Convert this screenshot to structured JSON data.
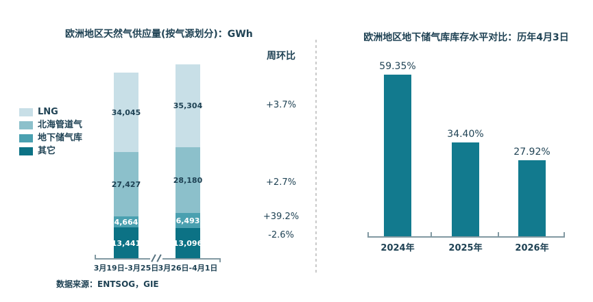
{
  "theme": {
    "background": "#ffffff",
    "text_color": "#1f4254",
    "axis_color": "#8198a1",
    "divider_color": "#c9c9c9"
  },
  "source_note": "数据来源：ENTSOG，GIE",
  "chart_data": [
    {
      "type": "bar",
      "subtype": "stacked",
      "title": "欧洲地区天然气供应量(按气源划分)：GWh",
      "unit": "GWh",
      "legend_position": "left",
      "categories": [
        "3月19日-3月25日",
        "3月26日-4月1日"
      ],
      "series": [
        {
          "name": "LNG",
          "color": "#c8dfe7",
          "values": [
            34045,
            35304
          ],
          "labels": [
            "34,045",
            "35,304"
          ],
          "label_color": "#1f4254"
        },
        {
          "name": "北海管道气",
          "color": "#8cc0cb",
          "values": [
            27427,
            28180
          ],
          "labels": [
            "27,427",
            "28,180"
          ],
          "label_color": "#1f4254"
        },
        {
          "name": "地下储气库",
          "color": "#4aa0b0",
          "values": [
            4664,
            6493
          ],
          "labels": [
            "4,664",
            "6,493"
          ],
          "label_color": "#ffffff"
        },
        {
          "name": "其它",
          "color": "#0c7285",
          "values": [
            13441,
            13096
          ],
          "labels": [
            "13,441",
            "13,096"
          ],
          "label_color": "#ffffff"
        }
      ],
      "wow": {
        "header": "周环比",
        "values": [
          "+3.7%",
          "+2.7%",
          "+39.2%",
          "-2.6%"
        ]
      },
      "axis_break": "//"
    },
    {
      "type": "bar",
      "title": "欧洲地区地下储气库库存水平对比：历年4月3日",
      "categories": [
        "2024年",
        "2025年",
        "2026年"
      ],
      "values": [
        59.35,
        34.4,
        27.92
      ],
      "labels": [
        "59.35%",
        "34.40%",
        "27.92%"
      ],
      "bar_color": "#127a8e"
    }
  ]
}
